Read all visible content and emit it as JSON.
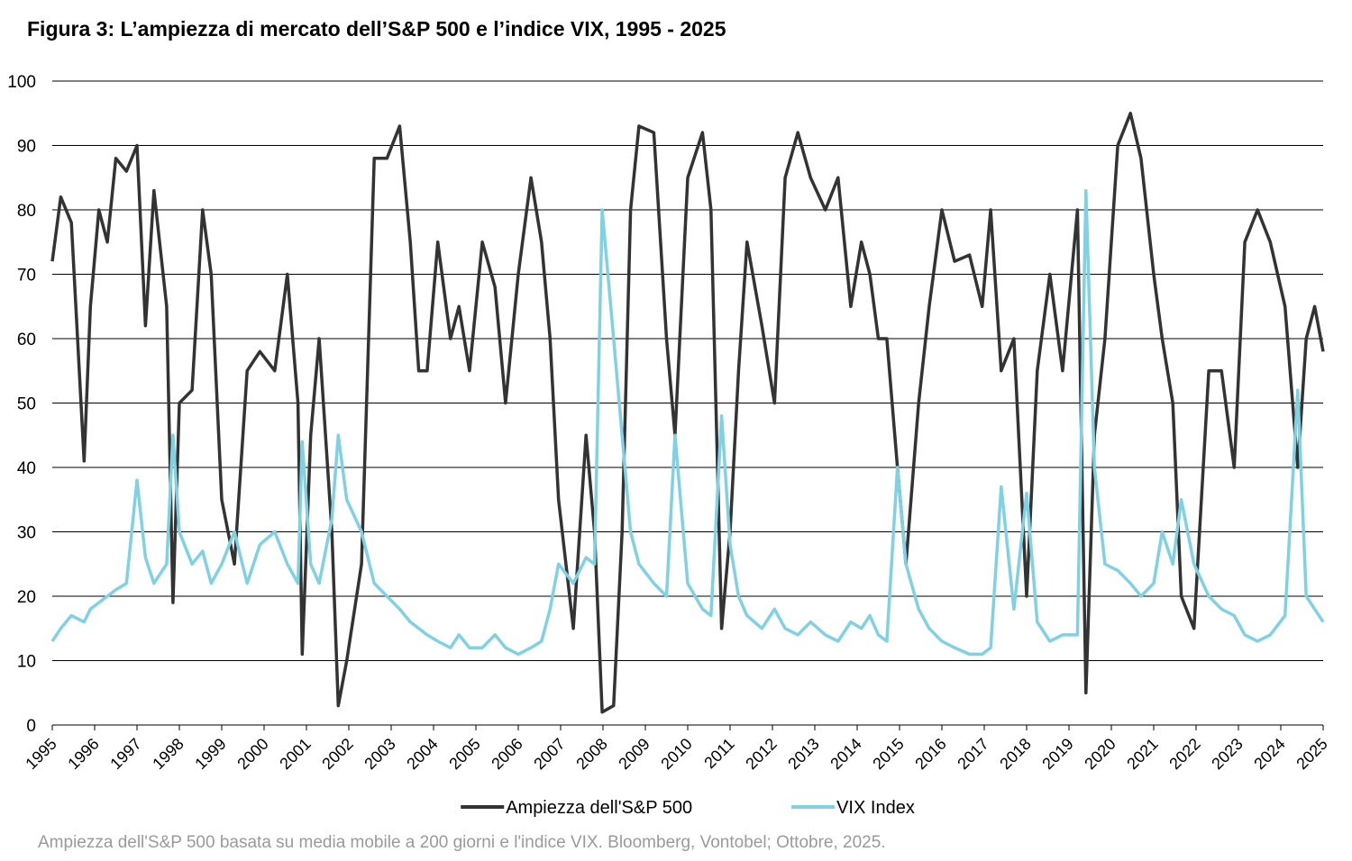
{
  "chart_data": {
    "type": "line",
    "title": "Figura 3: L’ampiezza di mercato dell’S&P 500 e l’indice VIX, 1995 - 2025",
    "note": "Ampiezza dell'S&P 500 basata su media mobile a 200 giorni e l'indice VIX. Bloomberg, Vontobel; Ottobre, 2025.",
    "x": [
      1995.0,
      1995.2,
      1995.45,
      1995.75,
      1995.9,
      1996.1,
      1996.3,
      1996.5,
      1996.75,
      1997.0,
      1997.2,
      1997.4,
      1997.7,
      1997.85,
      1998.0,
      1998.3,
      1998.55,
      1998.75,
      1999.0,
      1999.3,
      1999.6,
      1999.9,
      2000.25,
      2000.55,
      2000.8,
      2000.9,
      2001.1,
      2001.3,
      2001.6,
      2001.75,
      2001.95,
      2002.3,
      2002.6,
      2002.9,
      2003.2,
      2003.45,
      2003.65,
      2003.85,
      2004.1,
      2004.4,
      2004.6,
      2004.85,
      2005.15,
      2005.45,
      2005.7,
      2006.0,
      2006.3,
      2006.55,
      2006.75,
      2006.95,
      2007.3,
      2007.6,
      2007.8,
      2007.98,
      2008.25,
      2008.45,
      2008.65,
      2008.85,
      2009.2,
      2009.5,
      2009.7,
      2010.0,
      2010.35,
      2010.55,
      2010.8,
      2011.0,
      2011.2,
      2011.4,
      2011.75,
      2012.05,
      2012.3,
      2012.6,
      2012.9,
      2013.25,
      2013.55,
      2013.85,
      2014.1,
      2014.3,
      2014.5,
      2014.7,
      2014.95,
      2015.15,
      2015.45,
      2015.7,
      2016.0,
      2016.3,
      2016.65,
      2016.95,
      2017.15,
      2017.4,
      2017.7,
      2018.0,
      2018.25,
      2018.55,
      2018.85,
      2019.2,
      2019.4,
      2019.6,
      2019.85,
      2020.15,
      2020.45,
      2020.7,
      2021.0,
      2021.2,
      2021.45,
      2021.65,
      2021.95,
      2022.3,
      2022.6,
      2022.9,
      2023.15,
      2023.45,
      2023.75,
      2024.1,
      2024.4,
      2024.6,
      2024.8,
      2025.0
    ],
    "series": [
      {
        "name": "Ampiezza dell'S&P 500",
        "color": "#333333",
        "values": [
          72,
          82,
          78,
          41,
          65,
          80,
          75,
          88,
          86,
          90,
          62,
          83,
          65,
          19,
          50,
          52,
          80,
          70,
          35,
          25,
          55,
          58,
          55,
          70,
          50,
          11,
          45,
          60,
          30,
          3,
          10,
          25,
          88,
          88,
          93,
          75,
          55,
          55,
          75,
          60,
          65,
          55,
          75,
          68,
          50,
          70,
          85,
          75,
          60,
          35,
          15,
          45,
          30,
          2,
          3,
          30,
          80,
          93,
          92,
          60,
          45,
          85,
          92,
          80,
          15,
          30,
          55,
          75,
          62,
          50,
          85,
          92,
          85,
          80,
          85,
          65,
          75,
          70,
          60,
          60,
          40,
          25,
          50,
          65,
          80,
          72,
          73,
          65,
          80,
          55,
          60,
          20,
          55,
          70,
          55,
          80,
          5,
          45,
          60,
          90,
          95,
          88,
          70,
          60,
          50,
          20,
          15,
          55,
          55,
          40,
          75,
          80,
          75,
          65,
          40,
          60,
          65,
          58
        ]
      },
      {
        "name": "VIX Index",
        "color": "#7fd1e3",
        "values": [
          13,
          15,
          17,
          16,
          18,
          19,
          20,
          21,
          22,
          38,
          26,
          22,
          25,
          45,
          30,
          25,
          27,
          22,
          25,
          30,
          22,
          28,
          30,
          25,
          22,
          44,
          25,
          22,
          32,
          45,
          35,
          30,
          22,
          20,
          18,
          16,
          15,
          14,
          13,
          12,
          14,
          12,
          12,
          14,
          12,
          11,
          12,
          13,
          18,
          25,
          22,
          26,
          25,
          80,
          60,
          45,
          30,
          25,
          22,
          20,
          45,
          22,
          18,
          17,
          48,
          28,
          20,
          17,
          15,
          18,
          15,
          14,
          16,
          14,
          13,
          16,
          15,
          17,
          14,
          13,
          40,
          25,
          18,
          15,
          13,
          12,
          11,
          11,
          12,
          37,
          18,
          36,
          16,
          13,
          14,
          14,
          83,
          40,
          25,
          24,
          22,
          20,
          22,
          30,
          25,
          35,
          25,
          20,
          18,
          17,
          14,
          13,
          14,
          17,
          52,
          20,
          18,
          16
        ]
      }
    ],
    "xlim": [
      1995,
      2025
    ],
    "xticks": [
      1995,
      1996,
      1997,
      1998,
      1999,
      2000,
      2001,
      2002,
      2003,
      2004,
      2005,
      2006,
      2007,
      2008,
      2009,
      2010,
      2011,
      2012,
      2013,
      2014,
      2015,
      2016,
      2017,
      2018,
      2019,
      2020,
      2021,
      2022,
      2023,
      2024,
      2025
    ],
    "ylim": [
      0,
      100
    ],
    "yticks": [
      0,
      10,
      20,
      30,
      40,
      50,
      60,
      70,
      80,
      90,
      100
    ],
    "grid": true,
    "legend": "bottom"
  }
}
